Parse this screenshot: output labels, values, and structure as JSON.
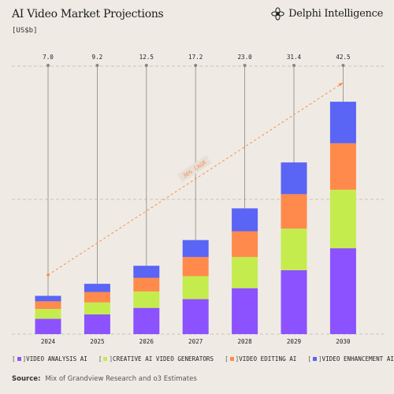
{
  "header": {
    "title": "AI Video Market Projections",
    "unit": "[US$b]",
    "brand": "Delphi Intelligence",
    "brand_icon": "flower-logo-icon"
  },
  "annotation": {
    "cagr": "36% CAGR"
  },
  "source": {
    "label": "Source:",
    "text": "Mix of Grandview Research and o3 Estimates"
  },
  "colors": {
    "background": "#efebe4",
    "video_analysis": "#8c52ff",
    "creative": "#c5ec4d",
    "editing": "#ff8a4c",
    "enhancement": "#5a64f5",
    "cagr_line": "#ff8a4c"
  },
  "chart_data": {
    "type": "bar",
    "stacked": true,
    "categories": [
      "2024",
      "2025",
      "2026",
      "2027",
      "2028",
      "2029",
      "2030"
    ],
    "totals": [
      "7.0",
      "9.2",
      "12.5",
      "17.2",
      "23.0",
      "31.4",
      "42.5"
    ],
    "series": [
      {
        "name": "VIDEO ANALYSIS AI",
        "values": [
          2.8,
          3.6,
          4.8,
          6.4,
          8.4,
          11.7,
          15.7
        ]
      },
      {
        "name": "CREATIVE AI VIDEO GENERATORS",
        "values": [
          1.8,
          2.2,
          3.0,
          4.2,
          5.7,
          7.6,
          10.7
        ]
      },
      {
        "name": "VIDEO EDITING AI",
        "values": [
          1.4,
          1.9,
          2.5,
          3.5,
          4.7,
          6.3,
          8.5
        ]
      },
      {
        "name": "VIDEO ENHANCEMENT AI",
        "values": [
          1.0,
          1.5,
          2.2,
          3.1,
          4.2,
          5.8,
          7.6
        ]
      }
    ],
    "ylim": [
      0,
      49
    ],
    "grid": true,
    "legend_position": "bottom",
    "trend_line": {
      "label": "36% CAGR",
      "from": "2024",
      "to": "2030"
    }
  }
}
